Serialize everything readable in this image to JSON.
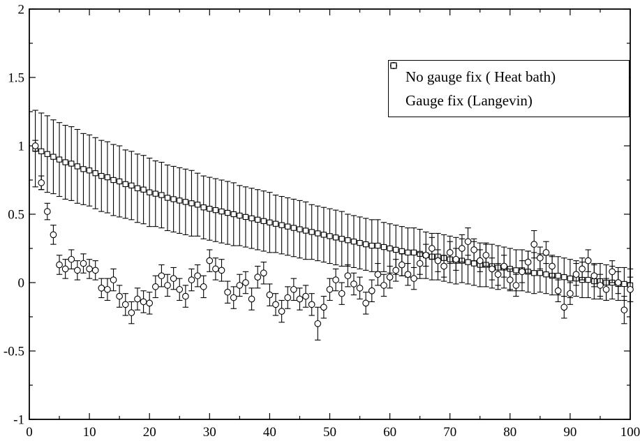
{
  "colors": {
    "foreground": "#000000",
    "background": "#ffffff"
  },
  "chart_data": {
    "type": "scatter",
    "title": "",
    "xlabel": "",
    "ylabel": "",
    "xlim": [
      0,
      100
    ],
    "ylim": [
      -1,
      2
    ],
    "grid": false,
    "legend_position": "top-right",
    "xticks": {
      "major": [
        0,
        10,
        20,
        30,
        40,
        50,
        60,
        70,
        80,
        90,
        100
      ],
      "labels": [
        "0",
        "10",
        "20",
        "30",
        "40",
        "50",
        "60",
        "70",
        "80",
        "90",
        "100"
      ],
      "minor_step": 5
    },
    "yticks": {
      "major": [
        -1,
        -0.5,
        0,
        0.5,
        1,
        1.5,
        2
      ],
      "labels": [
        "-1",
        "-0.5",
        "0",
        "0.5",
        "1",
        "1.5",
        "2"
      ],
      "minor_step": 0.25
    },
    "series": [
      {
        "name": "No gauge fix ( Heat bath)",
        "symbol": "circle",
        "x": [
          1,
          2,
          3,
          4,
          5,
          6,
          7,
          8,
          9,
          10,
          11,
          12,
          13,
          14,
          15,
          16,
          17,
          18,
          19,
          20,
          21,
          22,
          23,
          24,
          25,
          26,
          27,
          28,
          29,
          30,
          31,
          32,
          33,
          34,
          35,
          36,
          37,
          38,
          39,
          40,
          41,
          42,
          43,
          44,
          45,
          46,
          47,
          48,
          49,
          50,
          51,
          52,
          53,
          54,
          55,
          56,
          57,
          58,
          59,
          60,
          61,
          62,
          63,
          64,
          65,
          66,
          67,
          68,
          69,
          70,
          71,
          72,
          73,
          74,
          75,
          76,
          77,
          78,
          79,
          80,
          81,
          82,
          83,
          84,
          85,
          86,
          87,
          88,
          89,
          90,
          91,
          92,
          93,
          94,
          95,
          96,
          97,
          98,
          99,
          100
        ],
        "y": [
          1.0,
          0.73,
          0.52,
          0.35,
          0.13,
          0.1,
          0.17,
          0.09,
          0.14,
          0.1,
          0.09,
          -0.04,
          -0.05,
          0.02,
          -0.1,
          -0.16,
          -0.22,
          -0.12,
          -0.14,
          -0.15,
          -0.03,
          0.05,
          -0.02,
          0.03,
          -0.05,
          -0.1,
          0.02,
          0.05,
          -0.03,
          0.16,
          0.1,
          0.09,
          -0.07,
          -0.11,
          -0.02,
          0.0,
          -0.12,
          0.04,
          0.07,
          -0.09,
          -0.16,
          -0.21,
          -0.11,
          -0.05,
          -0.12,
          -0.1,
          -0.16,
          -0.3,
          -0.18,
          -0.05,
          0.02,
          -0.08,
          0.05,
          -0.01,
          -0.04,
          -0.15,
          -0.06,
          0.06,
          -0.02,
          0.04,
          0.09,
          0.13,
          0.06,
          0.03,
          0.14,
          0.2,
          0.25,
          0.16,
          0.12,
          0.22,
          0.17,
          0.25,
          0.3,
          0.24,
          0.16,
          0.2,
          0.1,
          0.06,
          0.12,
          0.02,
          -0.02,
          0.08,
          0.15,
          0.28,
          0.18,
          0.22,
          0.12,
          -0.06,
          -0.18,
          -0.08,
          0.06,
          0.1,
          0.16,
          0.05,
          -0.02,
          -0.05,
          0.08,
          0.0,
          -0.2,
          -0.05
        ],
        "yerr": [
          0.04,
          0.05,
          0.06,
          0.07,
          0.07,
          0.07,
          0.07,
          0.07,
          0.07,
          0.07,
          0.07,
          0.07,
          0.08,
          0.08,
          0.08,
          0.08,
          0.08,
          0.08,
          0.08,
          0.08,
          0.08,
          0.08,
          0.08,
          0.08,
          0.08,
          0.08,
          0.08,
          0.08,
          0.08,
          0.08,
          0.08,
          0.08,
          0.08,
          0.08,
          0.08,
          0.08,
          0.08,
          0.08,
          0.08,
          0.08,
          0.08,
          0.08,
          0.08,
          0.08,
          0.08,
          0.08,
          0.08,
          0.12,
          0.08,
          0.08,
          0.08,
          0.08,
          0.08,
          0.08,
          0.08,
          0.08,
          0.08,
          0.08,
          0.08,
          0.08,
          0.08,
          0.08,
          0.08,
          0.08,
          0.08,
          0.08,
          0.08,
          0.08,
          0.08,
          0.08,
          0.08,
          0.1,
          0.1,
          0.08,
          0.08,
          0.08,
          0.08,
          0.08,
          0.08,
          0.08,
          0.08,
          0.08,
          0.08,
          0.1,
          0.08,
          0.08,
          0.08,
          0.08,
          0.08,
          0.08,
          0.08,
          0.08,
          0.08,
          0.08,
          0.08,
          0.08,
          0.08,
          0.08,
          0.1,
          0.09
        ]
      },
      {
        "name": "Gauge fix (Langevin)",
        "symbol": "square",
        "x": [
          1,
          2,
          3,
          4,
          5,
          6,
          7,
          8,
          9,
          10,
          11,
          12,
          13,
          14,
          15,
          16,
          17,
          18,
          19,
          20,
          21,
          22,
          23,
          24,
          25,
          26,
          27,
          28,
          29,
          30,
          31,
          32,
          33,
          34,
          35,
          36,
          37,
          38,
          39,
          40,
          41,
          42,
          43,
          44,
          45,
          46,
          47,
          48,
          49,
          50,
          51,
          52,
          53,
          54,
          55,
          56,
          57,
          58,
          59,
          60,
          61,
          62,
          63,
          64,
          65,
          66,
          67,
          68,
          69,
          70,
          71,
          72,
          73,
          74,
          75,
          76,
          77,
          78,
          79,
          80,
          81,
          82,
          83,
          84,
          85,
          86,
          87,
          88,
          89,
          90,
          91,
          92,
          93,
          94,
          95,
          96,
          97,
          98,
          99,
          100
        ],
        "y": [
          0.98,
          0.96,
          0.94,
          0.92,
          0.9,
          0.88,
          0.87,
          0.85,
          0.83,
          0.82,
          0.8,
          0.78,
          0.77,
          0.75,
          0.74,
          0.72,
          0.71,
          0.69,
          0.68,
          0.66,
          0.65,
          0.64,
          0.62,
          0.61,
          0.6,
          0.59,
          0.58,
          0.57,
          0.55,
          0.54,
          0.53,
          0.52,
          0.51,
          0.5,
          0.49,
          0.48,
          0.47,
          0.46,
          0.45,
          0.44,
          0.43,
          0.42,
          0.41,
          0.4,
          0.39,
          0.38,
          0.37,
          0.36,
          0.35,
          0.34,
          0.33,
          0.32,
          0.31,
          0.3,
          0.29,
          0.28,
          0.27,
          0.27,
          0.26,
          0.25,
          0.24,
          0.23,
          0.22,
          0.22,
          0.21,
          0.2,
          0.19,
          0.19,
          0.18,
          0.17,
          0.16,
          0.16,
          0.15,
          0.14,
          0.13,
          0.13,
          0.12,
          0.11,
          0.11,
          0.1,
          0.09,
          0.09,
          0.08,
          0.07,
          0.07,
          0.06,
          0.05,
          0.05,
          0.04,
          0.03,
          0.03,
          0.02,
          0.02,
          0.01,
          0.01,
          0.0,
          0.0,
          -0.01,
          -0.01,
          -0.02
        ],
        "yerr": [
          0.28,
          0.28,
          0.28,
          0.27,
          0.27,
          0.27,
          0.27,
          0.27,
          0.26,
          0.26,
          0.26,
          0.26,
          0.26,
          0.26,
          0.26,
          0.25,
          0.25,
          0.25,
          0.25,
          0.25,
          0.24,
          0.24,
          0.24,
          0.24,
          0.24,
          0.24,
          0.24,
          0.23,
          0.23,
          0.23,
          0.23,
          0.23,
          0.23,
          0.23,
          0.22,
          0.22,
          0.22,
          0.22,
          0.22,
          0.22,
          0.21,
          0.21,
          0.21,
          0.21,
          0.21,
          0.21,
          0.2,
          0.2,
          0.2,
          0.2,
          0.2,
          0.2,
          0.19,
          0.19,
          0.19,
          0.19,
          0.19,
          0.19,
          0.18,
          0.18,
          0.18,
          0.18,
          0.18,
          0.18,
          0.18,
          0.17,
          0.17,
          0.17,
          0.17,
          0.17,
          0.17,
          0.16,
          0.16,
          0.16,
          0.16,
          0.16,
          0.16,
          0.16,
          0.15,
          0.15,
          0.15,
          0.15,
          0.15,
          0.15,
          0.14,
          0.14,
          0.14,
          0.14,
          0.14,
          0.14,
          0.13,
          0.13,
          0.13,
          0.13,
          0.13,
          0.13,
          0.12,
          0.12,
          0.12,
          0.12
        ]
      }
    ]
  }
}
